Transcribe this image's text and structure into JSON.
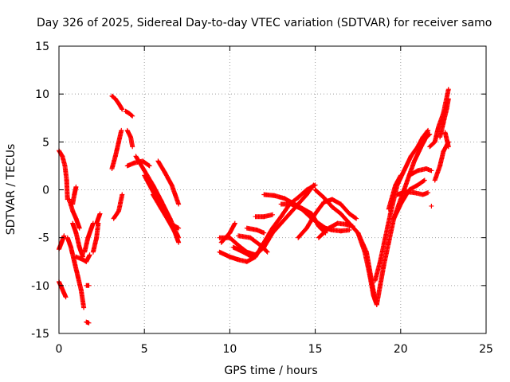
{
  "chart_data": {
    "type": "scatter",
    "title": "Day 326 of 2025, Sidereal Day-to-day VTEC variation (SDTVAR) for receiver samo",
    "xlabel": "GPS time / hours",
    "ylabel": "SDTVAR / TECUs",
    "xlim": [
      0,
      25
    ],
    "ylim": [
      -15,
      15
    ],
    "xticks": [
      "0",
      "5",
      "10",
      "15",
      "20",
      "25"
    ],
    "yticks": [
      "15",
      "10",
      "5",
      "0",
      "-5",
      "-10",
      "-15"
    ],
    "grid": true,
    "marker": "+",
    "series_color": "#ff0000",
    "tracks": [
      [
        [
          0.0,
          -6.2
        ],
        [
          0.15,
          -5.5
        ],
        [
          0.3,
          -4.8
        ]
      ],
      [
        [
          0.0,
          4.1
        ],
        [
          0.2,
          3.5
        ],
        [
          0.35,
          2.5
        ],
        [
          0.45,
          1.0
        ],
        [
          0.5,
          -1.0
        ]
      ],
      [
        [
          0.0,
          -9.6
        ],
        [
          0.15,
          -10.2
        ],
        [
          0.3,
          -10.8
        ],
        [
          0.4,
          -11.2
        ]
      ],
      [
        [
          0.6,
          -1.0
        ],
        [
          0.8,
          -2.2
        ],
        [
          1.0,
          -3.0
        ],
        [
          1.2,
          -4.0
        ]
      ],
      [
        [
          0.5,
          -5.0
        ],
        [
          0.7,
          -6.0
        ],
        [
          0.9,
          -7.5
        ],
        [
          1.1,
          -9.0
        ],
        [
          1.3,
          -10.5
        ],
        [
          1.45,
          -12.3
        ]
      ],
      [
        [
          1.0,
          -7.0
        ],
        [
          1.3,
          -7.2
        ],
        [
          1.6,
          -7.5
        ],
        [
          1.8,
          -6.8
        ]
      ],
      [
        [
          0.8,
          -3.5
        ],
        [
          1.0,
          -4.5
        ],
        [
          1.2,
          -6.0
        ],
        [
          1.4,
          -7.0
        ]
      ],
      [
        [
          0.8,
          -1.5
        ],
        [
          0.9,
          -0.5
        ],
        [
          1.0,
          0.3
        ]
      ],
      [
        [
          1.5,
          -6.5
        ],
        [
          1.7,
          -5.0
        ],
        [
          1.9,
          -4.0
        ],
        [
          2.0,
          -3.5
        ]
      ],
      [
        [
          2.0,
          -6.5
        ],
        [
          2.2,
          -5.0
        ],
        [
          2.3,
          -3.5
        ]
      ],
      [
        [
          2.2,
          -3.5
        ],
        [
          2.4,
          -2.5
        ]
      ],
      [
        [
          1.6,
          -10.0
        ],
        [
          1.75,
          -10.0
        ]
      ],
      [
        [
          1.6,
          -13.8
        ],
        [
          1.75,
          -13.9
        ]
      ],
      [
        [
          3.1,
          9.8
        ],
        [
          3.3,
          9.5
        ],
        [
          3.5,
          9.0
        ],
        [
          3.7,
          8.4
        ]
      ],
      [
        [
          3.9,
          8.2
        ],
        [
          4.1,
          8.0
        ],
        [
          4.3,
          7.7
        ]
      ],
      [
        [
          3.1,
          2.2
        ],
        [
          3.3,
          3.5
        ],
        [
          3.5,
          5.0
        ],
        [
          3.65,
          6.2
        ]
      ],
      [
        [
          3.2,
          -3.0
        ],
        [
          3.5,
          -2.2
        ],
        [
          3.7,
          -0.5
        ]
      ],
      [
        [
          4.0,
          6.2
        ],
        [
          4.2,
          5.5
        ],
        [
          4.3,
          4.5
        ]
      ],
      [
        [
          4.0,
          2.5
        ],
        [
          4.4,
          2.8
        ],
        [
          4.9,
          3.0
        ],
        [
          5.3,
          2.5
        ]
      ],
      [
        [
          4.5,
          3.5
        ],
        [
          5.0,
          2.0
        ],
        [
          5.5,
          0.5
        ],
        [
          6.0,
          -1.2
        ],
        [
          6.5,
          -3.0
        ],
        [
          7.0,
          -5.0
        ]
      ],
      [
        [
          5.0,
          1.5
        ],
        [
          5.6,
          -0.5
        ],
        [
          6.2,
          -2.5
        ],
        [
          6.8,
          -4.5
        ],
        [
          7.0,
          -5.5
        ]
      ],
      [
        [
          5.8,
          3.0
        ],
        [
          6.2,
          1.8
        ],
        [
          6.6,
          0.5
        ],
        [
          7.0,
          -1.5
        ]
      ],
      [
        [
          5.5,
          -0.5
        ],
        [
          6.0,
          -2.0
        ],
        [
          6.5,
          -3.5
        ],
        [
          7.0,
          -4.0
        ]
      ],
      [
        [
          9.4,
          -5.0
        ],
        [
          10.0,
          -5.0
        ],
        [
          10.5,
          -5.8
        ],
        [
          11.0,
          -6.5
        ],
        [
          11.5,
          -6.8
        ],
        [
          12.0,
          -6.0
        ],
        [
          12.5,
          -4.5
        ],
        [
          13.0,
          -3.5
        ],
        [
          13.5,
          -2.5
        ],
        [
          14.0,
          -1.5
        ],
        [
          14.5,
          -0.5
        ],
        [
          14.9,
          0.5
        ]
      ],
      [
        [
          9.5,
          -5.5
        ],
        [
          10.0,
          -4.5
        ],
        [
          10.3,
          -3.5
        ]
      ],
      [
        [
          9.4,
          -6.5
        ],
        [
          10.0,
          -7.0
        ],
        [
          10.5,
          -7.3
        ],
        [
          11.0,
          -7.5
        ],
        [
          11.5,
          -7.0
        ],
        [
          12.0,
          -5.5
        ],
        [
          12.5,
          -4.0
        ],
        [
          13.0,
          -2.8
        ],
        [
          13.5,
          -1.5
        ],
        [
          14.0,
          -0.8
        ],
        [
          14.5,
          0.0
        ],
        [
          15.0,
          0.5
        ]
      ],
      [
        [
          10.2,
          -6.0
        ],
        [
          10.8,
          -6.5
        ],
        [
          11.3,
          -7.0
        ],
        [
          11.7,
          -6.5
        ]
      ],
      [
        [
          10.5,
          -4.8
        ],
        [
          11.2,
          -5.0
        ],
        [
          11.8,
          -5.8
        ],
        [
          12.2,
          -6.5
        ]
      ],
      [
        [
          11.0,
          -4.0
        ],
        [
          11.6,
          -4.2
        ],
        [
          12.0,
          -4.5
        ]
      ],
      [
        [
          11.5,
          -2.8
        ],
        [
          12.0,
          -2.8
        ],
        [
          12.5,
          -2.6
        ]
      ],
      [
        [
          12.0,
          -0.5
        ],
        [
          12.6,
          -0.6
        ],
        [
          13.2,
          -0.9
        ],
        [
          13.8,
          -1.5
        ],
        [
          14.3,
          -2.0
        ],
        [
          14.8,
          -2.5
        ],
        [
          15.2,
          -3.8
        ],
        [
          15.6,
          -4.5
        ]
      ],
      [
        [
          13.0,
          -1.5
        ],
        [
          13.6,
          -1.5
        ],
        [
          14.2,
          -2.0
        ],
        [
          14.8,
          -3.0
        ],
        [
          15.2,
          -3.5
        ],
        [
          15.6,
          -4.0
        ],
        [
          16.0,
          -4.2
        ],
        [
          16.5,
          -4.3
        ],
        [
          17.0,
          -4.2
        ]
      ],
      [
        [
          14.0,
          -5.0
        ],
        [
          14.5,
          -4.0
        ],
        [
          15.0,
          -2.5
        ],
        [
          15.5,
          -1.3
        ],
        [
          16.0,
          -1.0
        ],
        [
          16.5,
          -1.5
        ],
        [
          17.0,
          -2.5
        ],
        [
          17.4,
          -3.0
        ]
      ],
      [
        [
          15.0,
          0.0
        ],
        [
          15.5,
          -0.8
        ],
        [
          16.0,
          -1.8
        ],
        [
          16.5,
          -2.5
        ],
        [
          17.0,
          -3.5
        ],
        [
          17.5,
          -4.5
        ],
        [
          18.0,
          -6.5
        ],
        [
          18.3,
          -9.5
        ],
        [
          18.5,
          -11.5
        ]
      ],
      [
        [
          15.2,
          -5.0
        ],
        [
          15.8,
          -4.0
        ],
        [
          16.3,
          -3.5
        ],
        [
          16.8,
          -3.6
        ],
        [
          17.2,
          -3.8
        ]
      ],
      [
        [
          17.5,
          -4.5
        ],
        [
          17.9,
          -6.5
        ],
        [
          18.2,
          -9.0
        ],
        [
          18.4,
          -11.0
        ],
        [
          18.6,
          -12.0
        ]
      ],
      [
        [
          18.6,
          -12.0
        ],
        [
          18.8,
          -10.0
        ],
        [
          19.0,
          -8.0
        ],
        [
          19.3,
          -5.5
        ],
        [
          19.6,
          -3.0
        ],
        [
          20.0,
          -1.0
        ],
        [
          20.4,
          1.0
        ],
        [
          20.8,
          3.0
        ],
        [
          21.2,
          4.5
        ],
        [
          21.5,
          5.5
        ],
        [
          21.7,
          5.8
        ]
      ],
      [
        [
          18.5,
          -9.5
        ],
        [
          18.8,
          -7.5
        ],
        [
          19.1,
          -5.0
        ],
        [
          19.4,
          -2.5
        ],
        [
          19.8,
          0.5
        ],
        [
          20.2,
          2.0
        ],
        [
          20.6,
          3.5
        ],
        [
          21.0,
          4.5
        ],
        [
          21.3,
          5.5
        ],
        [
          21.6,
          6.2
        ]
      ],
      [
        [
          19.3,
          -2.0
        ],
        [
          19.7,
          0.5
        ],
        [
          20.0,
          1.5
        ]
      ],
      [
        [
          19.6,
          -3.0
        ],
        [
          20.0,
          -1.5
        ],
        [
          20.5,
          0.0
        ],
        [
          21.0,
          0.5
        ],
        [
          21.4,
          1.0
        ]
      ],
      [
        [
          19.8,
          -0.5
        ],
        [
          20.3,
          -0.2
        ],
        [
          20.8,
          -0.3
        ],
        [
          21.3,
          -0.5
        ],
        [
          21.6,
          -0.3
        ]
      ],
      [
        [
          20.5,
          1.5
        ],
        [
          21.0,
          2.0
        ],
        [
          21.5,
          2.2
        ],
        [
          21.8,
          2.0
        ]
      ],
      [
        [
          21.8,
          -1.7
        ]
      ],
      [
        [
          21.7,
          4.5
        ],
        [
          22.0,
          5.0
        ],
        [
          22.2,
          6.5
        ],
        [
          22.5,
          8.0
        ],
        [
          22.8,
          10.5
        ]
      ],
      [
        [
          22.0,
          1.0
        ],
        [
          22.3,
          2.5
        ],
        [
          22.5,
          4.0
        ],
        [
          22.8,
          5.0
        ]
      ],
      [
        [
          22.3,
          5.5
        ],
        [
          22.5,
          7.0
        ],
        [
          22.7,
          8.5
        ],
        [
          22.8,
          9.5
        ]
      ],
      [
        [
          22.6,
          6.0
        ],
        [
          22.8,
          4.5
        ]
      ]
    ]
  }
}
